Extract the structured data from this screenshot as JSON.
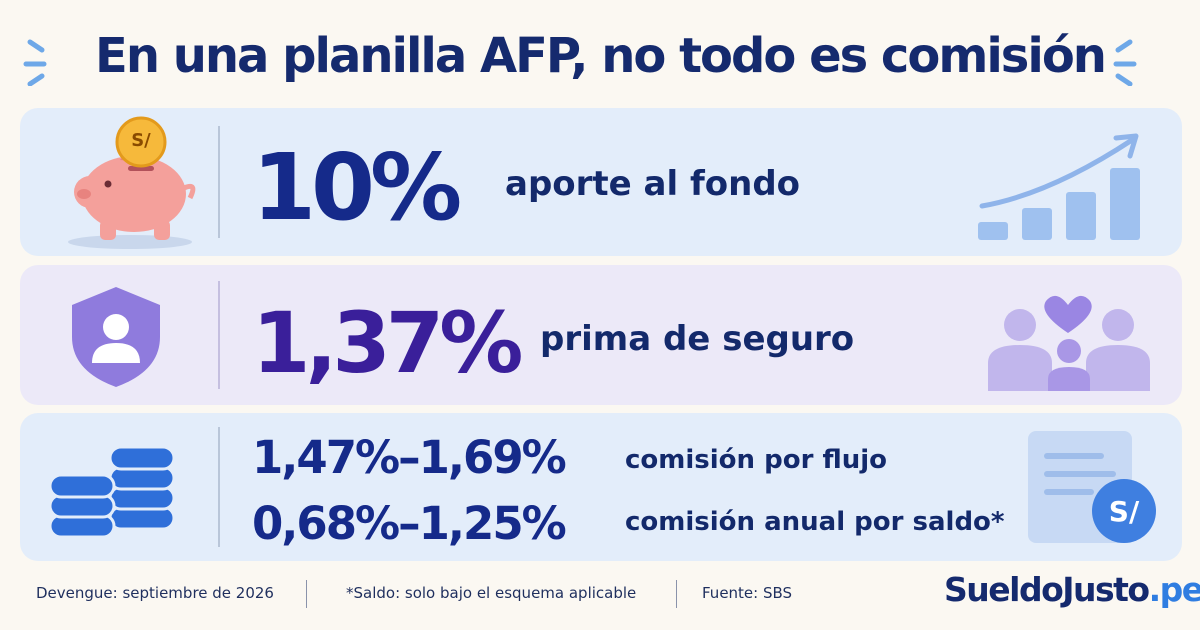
{
  "title": "En una planilla AFP, no todo es comisión",
  "cards": [
    {
      "value": "10%",
      "label": "aporte al fondo",
      "icon": "piggy-bank-icon",
      "accent": "#152a8a"
    },
    {
      "value": "1,37%",
      "label": "prima de seguro",
      "icon": "shield-person-icon",
      "accent": "#3a1f9a"
    },
    {
      "ranges": [
        {
          "value": "1,47%–1,69%",
          "label": "comisión por flujo"
        },
        {
          "value": "0,68%–1,25%",
          "label": "comisión anual por saldo*"
        }
      ],
      "icon": "coin-stack-icon",
      "accent": "#152a8a"
    }
  ],
  "piggy_coin_symbol": "S/",
  "document_coin_symbol": "S/",
  "footer": {
    "devengue": "Devengue: septiembre de 2026",
    "note": "*Saldo: solo bajo el esquema aplicable",
    "source": "Fuente: SBS"
  },
  "brand": {
    "name": "SueldoJusto",
    "tld": ".pe"
  },
  "colors": {
    "background": "#fbf8f2",
    "card_blue": "#e3edfa",
    "card_purple": "#ece9f8",
    "navy": "#152a6e",
    "brand_accent": "#2f7de1"
  }
}
